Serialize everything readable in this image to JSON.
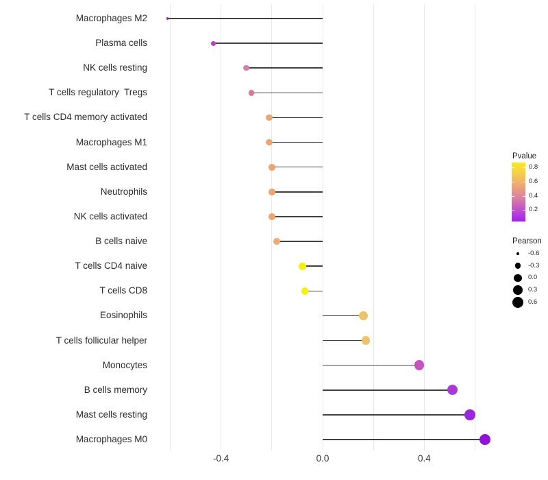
{
  "chart_data": {
    "type": "lollipop",
    "orientation": "horizontal",
    "title": "",
    "xlabel": "",
    "ylabel": "",
    "grid": "vertical-only",
    "baseline": 0.0,
    "xlim": [
      -0.67,
      0.7
    ],
    "x_gridlines": [
      -0.6,
      -0.4,
      -0.2,
      0.0,
      0.2,
      0.4,
      0.6
    ],
    "x_ticks": [
      {
        "value": -0.4,
        "label": "-0.4"
      },
      {
        "value": 0.0,
        "label": "0.0"
      },
      {
        "value": 0.4,
        "label": "0.4"
      }
    ],
    "color_encodes": "Pvalue",
    "size_encodes": "Pearson",
    "points": [
      {
        "label": "Macrophages M2",
        "pearson": -0.61,
        "pvalue": 0.1,
        "color": "#9328ce"
      },
      {
        "label": "Plasma cells",
        "pearson": -0.43,
        "pvalue": 0.2,
        "color": "#b83fc7"
      },
      {
        "label": "NK cells resting",
        "pearson": -0.3,
        "pvalue": 0.45,
        "color": "#d881a7"
      },
      {
        "label": "T cells regulatory  Tregs",
        "pearson": -0.28,
        "pvalue": 0.47,
        "color": "#d97795"
      },
      {
        "label": "T cells CD4 memory activated",
        "pearson": -0.21,
        "pvalue": 0.6,
        "color": "#eda671"
      },
      {
        "label": "Macrophages M1",
        "pearson": -0.21,
        "pvalue": 0.6,
        "color": "#eda671"
      },
      {
        "label": "Mast cells activated",
        "pearson": -0.2,
        "pvalue": 0.6,
        "color": "#eda671"
      },
      {
        "label": "Neutrophils",
        "pearson": -0.2,
        "pvalue": 0.6,
        "color": "#eda671"
      },
      {
        "label": "NK cells activated",
        "pearson": -0.2,
        "pvalue": 0.6,
        "color": "#eda671"
      },
      {
        "label": "B cells naive",
        "pearson": -0.18,
        "pvalue": 0.63,
        "color": "#ebad72"
      },
      {
        "label": "T cells CD4 naive",
        "pearson": -0.08,
        "pvalue": 0.88,
        "color": "#f5f014"
      },
      {
        "label": "T cells CD8",
        "pearson": -0.07,
        "pvalue": 0.88,
        "color": "#f6f112"
      },
      {
        "label": "Eosinophils",
        "pearson": 0.16,
        "pvalue": 0.72,
        "color": "#ebc46c"
      },
      {
        "label": "T cells follicular helper",
        "pearson": 0.17,
        "pvalue": 0.72,
        "color": "#ebc46c"
      },
      {
        "label": "Monocytes",
        "pearson": 0.38,
        "pvalue": 0.3,
        "color": "#c455be"
      },
      {
        "label": "B cells memory",
        "pearson": 0.51,
        "pvalue": 0.16,
        "color": "#a93ad8"
      },
      {
        "label": "Mast cells resting",
        "pearson": 0.58,
        "pvalue": 0.12,
        "color": "#9b29dc"
      },
      {
        "label": "Macrophages M0",
        "pearson": 0.64,
        "pvalue": 0.07,
        "color": "#8e12dc"
      }
    ]
  },
  "legends": {
    "pvalue": {
      "title": "Pvalue",
      "bar_range": [
        0.04,
        0.87
      ],
      "gradient_bottom_to_top": [
        "#a21fef",
        "#c050cc",
        "#da81a5",
        "#eda574",
        "#f5cc4f",
        "#fbe822"
      ],
      "ticks": [
        {
          "value": 0.8,
          "label": "0.8"
        },
        {
          "value": 0.6,
          "label": "0.6"
        },
        {
          "value": 0.4,
          "label": "0.4"
        },
        {
          "value": 0.2,
          "label": "0.2"
        }
      ]
    },
    "pearson": {
      "title": "Pearson",
      "dot_color": "#000000",
      "items": [
        {
          "value": -0.6,
          "label": "-0.6"
        },
        {
          "value": -0.3,
          "label": "-0.3"
        },
        {
          "value": 0.0,
          "label": "0.0"
        },
        {
          "value": 0.3,
          "label": "0.3"
        },
        {
          "value": 0.6,
          "label": "0.6"
        }
      ]
    }
  },
  "colors": {
    "segment": "#404040",
    "gridline": "#e9e9e9",
    "axis_text": "#333333",
    "background": "#ffffff"
  }
}
